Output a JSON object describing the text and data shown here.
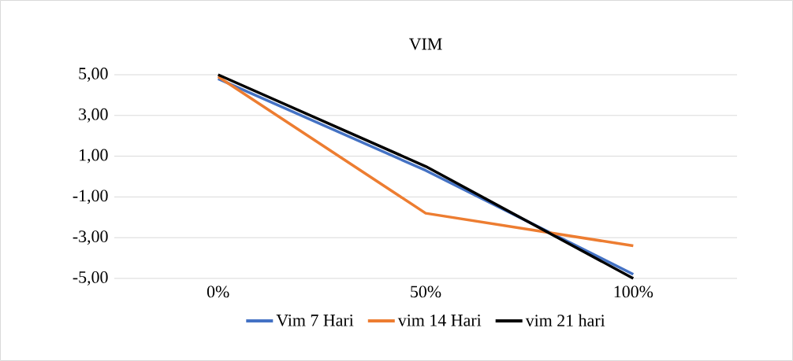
{
  "chart_data": {
    "type": "line",
    "title": "VIM",
    "categories": [
      "0%",
      "50%",
      "100%"
    ],
    "series": [
      {
        "name": "Vim 7 Hari",
        "color": "#4472c4",
        "values": [
          4.8,
          0.3,
          -4.8
        ]
      },
      {
        "name": "vim 14 Hari",
        "color": "#ed7d31",
        "values": [
          4.9,
          -1.8,
          -3.4
        ]
      },
      {
        "name": "vim 21 hari",
        "color": "#000000",
        "values": [
          5.0,
          0.5,
          -5.0
        ]
      }
    ],
    "ylim": [
      -5,
      5
    ],
    "yticks": [
      {
        "value": -5,
        "label": "-5,00"
      },
      {
        "value": -3,
        "label": "-3,00"
      },
      {
        "value": -1,
        "label": "-1,00"
      },
      {
        "value": 1,
        "label": "1,00"
      },
      {
        "value": 3,
        "label": "3,00"
      },
      {
        "value": 5,
        "label": "5,00"
      }
    ],
    "grid": "y",
    "legend": "bottom",
    "marker": "none",
    "line_style": "solid"
  }
}
